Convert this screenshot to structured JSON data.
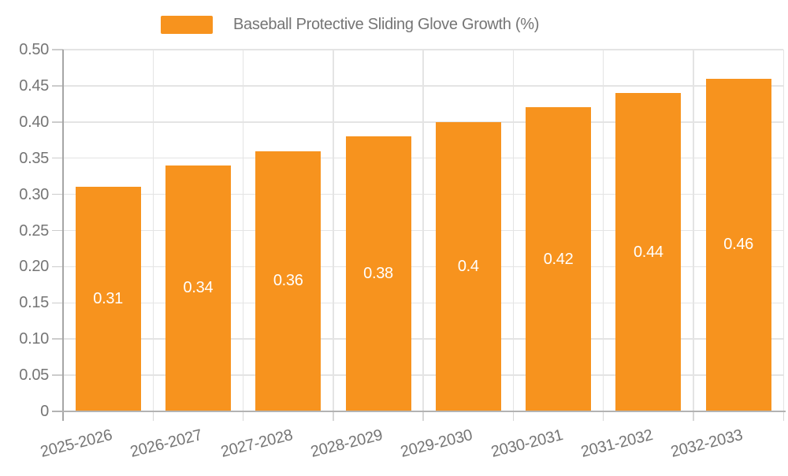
{
  "chart_data": {
    "type": "bar",
    "title": "",
    "legend": [
      {
        "label": "Baseball Protective Sliding Glove Growth (%)",
        "color": "#F7931E"
      }
    ],
    "legend_position": "top",
    "categories": [
      "2025-2026",
      "2026-2027",
      "2027-2028",
      "2028-2029",
      "2029-2030",
      "2030-2031",
      "2031-2032",
      "2032-2033"
    ],
    "series": [
      {
        "name": "Baseball Protective Sliding Glove Growth (%)",
        "values": [
          0.31,
          0.34,
          0.36,
          0.38,
          0.4,
          0.42,
          0.44,
          0.46
        ]
      }
    ],
    "value_labels": [
      "0.31",
      "0.34",
      "0.36",
      "0.38",
      "0.4",
      "0.42",
      "0.44",
      "0.46"
    ],
    "xlabel": "",
    "ylabel": "",
    "ylim": [
      0,
      0.5
    ],
    "ytick_step": 0.05,
    "yticks": [
      "0",
      "0.05",
      "0.10",
      "0.15",
      "0.20",
      "0.25",
      "0.30",
      "0.35",
      "0.40",
      "0.45",
      "0.50"
    ],
    "grid": true,
    "colors": {
      "bar": "#F7931E",
      "bar_label": "#FFFFFF",
      "axis_label": "#757575",
      "grid_line": "#E4E4E4",
      "axis_line": "#ADADAD",
      "background": "#FFFFFF"
    }
  }
}
